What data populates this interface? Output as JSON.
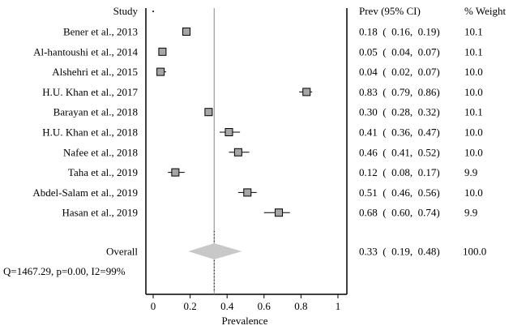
{
  "chart_data": {
    "type": "forest",
    "xlabel": "Prevalence",
    "xlim": [
      0,
      1
    ],
    "xticks": [
      0,
      0.2,
      0.4,
      0.6,
      0.8,
      1
    ],
    "xtick_labels": [
      "0",
      "0.2",
      "0.4",
      "0.6",
      "0.8",
      "1"
    ],
    "reference_line": 0.33,
    "headers": {
      "study": "Study",
      "estimate": "Prev (95% CI)",
      "weight": "% Weight"
    },
    "studies": [
      {
        "label": "Bener et al., 2013",
        "est": 0.18,
        "lo": 0.16,
        "hi": 0.19,
        "estimate_text": "0.18  (  0.16,  0.19)",
        "weight": "10.1"
      },
      {
        "label": "Al-hantoushi et al., 2014",
        "est": 0.05,
        "lo": 0.04,
        "hi": 0.07,
        "estimate_text": "0.05  (  0.04,  0.07)",
        "weight": "10.1"
      },
      {
        "label": "Alshehri et al., 2015",
        "est": 0.04,
        "lo": 0.02,
        "hi": 0.07,
        "estimate_text": "0.04  (  0.02,  0.07)",
        "weight": "10.0"
      },
      {
        "label": "H.U. Khan et al., 2017",
        "est": 0.83,
        "lo": 0.79,
        "hi": 0.86,
        "estimate_text": "0.83  (  0.79,  0.86)",
        "weight": "10.0"
      },
      {
        "label": "Barayan  et al., 2018",
        "est": 0.3,
        "lo": 0.28,
        "hi": 0.32,
        "estimate_text": "0.30  (  0.28,  0.32)",
        "weight": "10.1"
      },
      {
        "label": "H.U. Khan et al., 2018",
        "est": 0.41,
        "lo": 0.36,
        "hi": 0.47,
        "estimate_text": "0.41  (  0.36,  0.47)",
        "weight": "10.0"
      },
      {
        "label": "Nafee et al., 2018",
        "est": 0.46,
        "lo": 0.41,
        "hi": 0.52,
        "estimate_text": "0.46  (  0.41,  0.52)",
        "weight": "10.0"
      },
      {
        "label": "Taha et al., 2019",
        "est": 0.12,
        "lo": 0.08,
        "hi": 0.17,
        "estimate_text": "0.12  (  0.08,  0.17)",
        "weight": "9.9"
      },
      {
        "label": "Abdel-Salam et al., 2019",
        "est": 0.51,
        "lo": 0.46,
        "hi": 0.56,
        "estimate_text": "0.51  (  0.46,  0.56)",
        "weight": "10.0"
      },
      {
        "label": "Hasan et al., 2019",
        "est": 0.68,
        "lo": 0.6,
        "hi": 0.74,
        "estimate_text": "0.68  (  0.60,  0.74)",
        "weight": "9.9"
      }
    ],
    "overall": {
      "label": "Overall",
      "est": 0.33,
      "lo": 0.19,
      "hi": 0.48,
      "estimate_text": "0.33  (  0.19,  0.48)",
      "weight": "100.0"
    },
    "heterogeneity": "Q=1467.29, p=0.00, I2=99%",
    "colors": {
      "box_fill": "#a6a6a6",
      "diamond_fill": "#c8c8c8",
      "reference_line": "#888888",
      "axis": "#000000"
    }
  }
}
